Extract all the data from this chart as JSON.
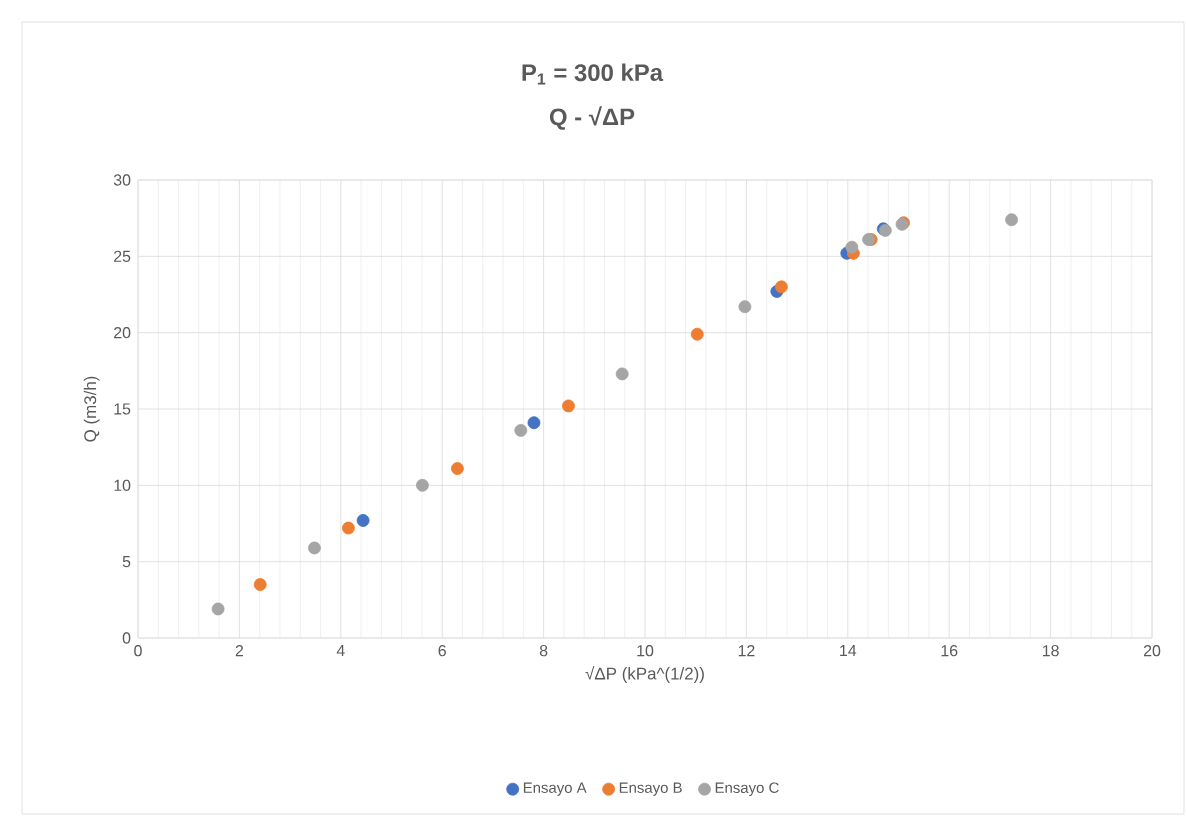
{
  "chart_data": {
    "type": "scatter",
    "title": "P$_{1}$ = 300 kPa",
    "subtitle": "Q - √ΔP",
    "xlabel": "√ΔP (kPa^(1/2))",
    "ylabel": "Q (m3/h)",
    "xlim": [
      0,
      20
    ],
    "xticks": [
      0,
      2,
      4,
      6,
      8,
      10,
      12,
      14,
      16,
      18,
      20
    ],
    "ylim": [
      0,
      30
    ],
    "yticks": [
      0,
      5,
      10,
      15,
      20,
      25,
      30
    ],
    "grid": true,
    "legend": "bottom",
    "marker": "circle",
    "series": [
      {
        "name": "Ensayo A",
        "color": "#4472c4",
        "x": [
          4.44,
          7.81,
          12.6,
          13.98,
          14.7
        ],
        "values": [
          7.7,
          14.1,
          22.7,
          25.2,
          26.8
        ]
      },
      {
        "name": "Ensayo B",
        "color": "#ed7d31",
        "x": [
          2.41,
          4.15,
          6.3,
          8.49,
          11.03,
          12.69,
          14.11,
          14.46,
          15.1
        ],
        "values": [
          3.5,
          7.2,
          11.1,
          15.2,
          19.9,
          23.0,
          25.2,
          26.1,
          27.2
        ]
      },
      {
        "name": "Ensayo C",
        "color": "#a5a5a5",
        "x": [
          1.58,
          3.48,
          5.61,
          7.55,
          9.55,
          11.97,
          14.08,
          14.41,
          14.74,
          15.07,
          17.23
        ],
        "values": [
          1.9,
          5.9,
          10.0,
          13.6,
          17.3,
          21.7,
          25.6,
          26.1,
          26.7,
          27.1,
          27.4
        ]
      }
    ]
  }
}
